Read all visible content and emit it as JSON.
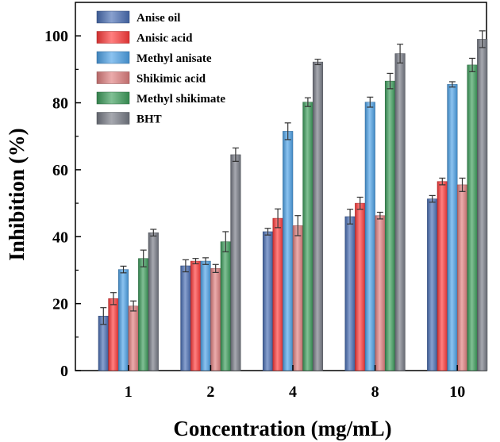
{
  "chart_data": {
    "type": "bar",
    "title": "",
    "xlabel": "Concentration (mg/mL)",
    "ylabel": "Inhibition (%)",
    "ylim": [
      0,
      110
    ],
    "yticks": [
      0,
      20,
      40,
      60,
      80,
      100
    ],
    "categories": [
      "1",
      "2",
      "4",
      "8",
      "10"
    ],
    "legend_position": "top-left",
    "series": [
      {
        "name": "Anise oil",
        "color": "#4a6fb5",
        "values": [
          16.3,
          31.3,
          41.5,
          46.0,
          51.3
        ],
        "errors": [
          2.5,
          1.8,
          1.0,
          2.2,
          1.0
        ]
      },
      {
        "name": "Anisic acid",
        "color": "#ff3b3b",
        "values": [
          21.5,
          32.7,
          45.5,
          50.0,
          56.5
        ],
        "errors": [
          1.8,
          0.8,
          2.8,
          1.8,
          1.0
        ]
      },
      {
        "name": "Methyl anisate",
        "color": "#4ea2e8",
        "values": [
          30.2,
          32.7,
          71.5,
          80.2,
          85.5
        ],
        "errors": [
          1.0,
          1.0,
          2.5,
          1.5,
          0.8
        ]
      },
      {
        "name": "Shikimic acid",
        "color": "#e07f7f",
        "values": [
          19.3,
          30.5,
          43.3,
          46.3,
          55.5
        ],
        "errors": [
          1.5,
          1.2,
          3.0,
          1.0,
          2.0
        ]
      },
      {
        "name": "Methyl shikimate",
        "color": "#3d9e5c",
        "values": [
          33.5,
          38.5,
          80.2,
          86.5,
          91.3
        ],
        "errors": [
          2.5,
          3.0,
          1.3,
          2.3,
          2.0
        ]
      },
      {
        "name": "BHT",
        "color": "#777b86",
        "values": [
          41.2,
          64.5,
          92.2,
          94.7,
          99.0
        ],
        "errors": [
          1.0,
          2.0,
          0.8,
          2.8,
          2.5
        ]
      }
    ]
  }
}
